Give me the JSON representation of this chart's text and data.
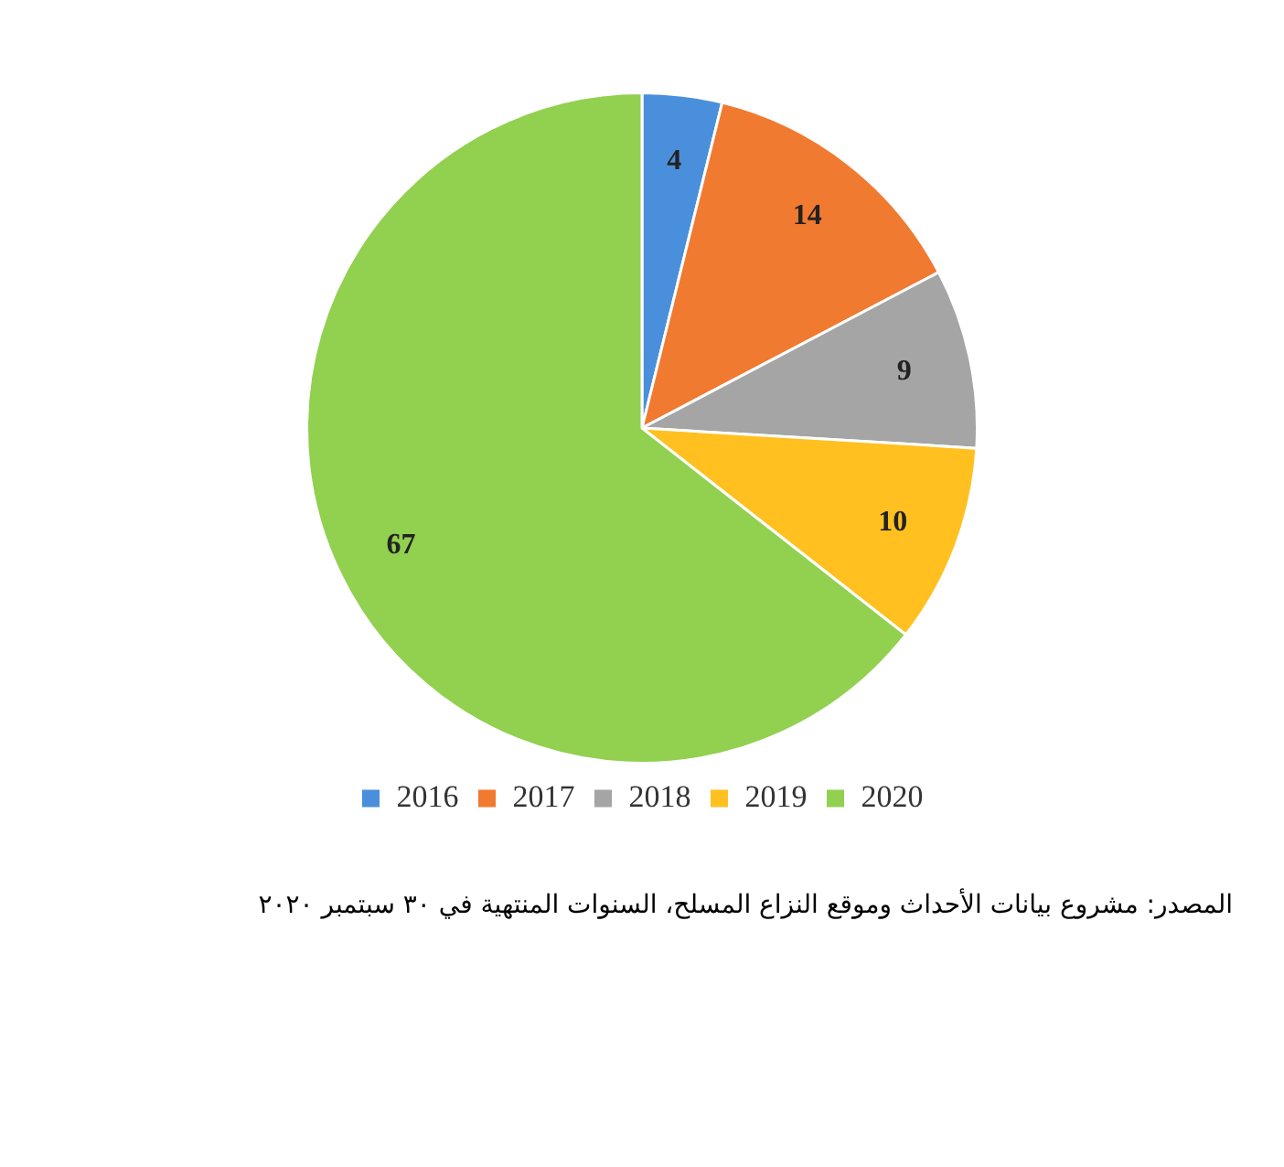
{
  "chart_data": {
    "type": "pie",
    "categories": [
      "2016",
      "2017",
      "2018",
      "2019",
      "2020"
    ],
    "values": [
      4,
      14,
      9,
      10,
      67
    ],
    "colors": [
      "#4a8fdc",
      "#f07a30",
      "#a5a5a5",
      "#ffc020",
      "#92d050"
    ],
    "data_labels": true,
    "legend": "bottom",
    "annotations": [
      "المصدر: مشروع بيانات الأحداث وموقع النزاع المسلح، السنوات المنتهية في ٣٠ سبتمبر ٢٠٢٠"
    ]
  }
}
